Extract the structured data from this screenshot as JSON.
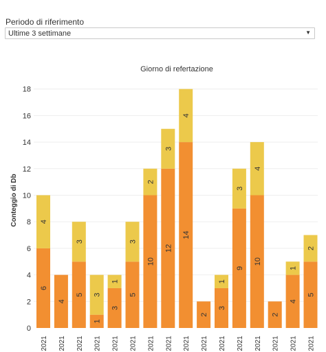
{
  "filter": {
    "label": "Periodo di riferimento",
    "value": "Ultime 3 settimane",
    "arrow_icon": "triangle-down-icon"
  },
  "colors": {
    "lower": "#f28f31",
    "upper": "#ecc94b",
    "grid": "#eeeeee",
    "text": "#333333"
  },
  "chart_data": {
    "type": "bar",
    "stacked": true,
    "title": "Giorno di refertazione",
    "xlabel": "",
    "ylabel": "Conteggio di Db",
    "ylim": [
      0,
      18
    ],
    "yticks": [
      0,
      2,
      4,
      6,
      8,
      10,
      12,
      14,
      16,
      18
    ],
    "grid": true,
    "categories": [
      "o 2021",
      "o 2021",
      "o 2021",
      "o 2021",
      "o 2021",
      "o 2021",
      "o 2021",
      "o 2021",
      "o 2021",
      "o 2021",
      "o 2021",
      "o 2021",
      "o 2021",
      "o 2021",
      "o 2021",
      "o 2021"
    ],
    "series": [
      {
        "values": [
          6,
          4,
          5,
          1,
          3,
          5,
          10,
          12,
          14,
          2,
          3,
          9,
          10,
          2,
          4,
          5
        ]
      },
      {
        "values": [
          4,
          0,
          3,
          3,
          1,
          3,
          2,
          3,
          4,
          0,
          1,
          3,
          4,
          0,
          1,
          2
        ]
      }
    ]
  }
}
